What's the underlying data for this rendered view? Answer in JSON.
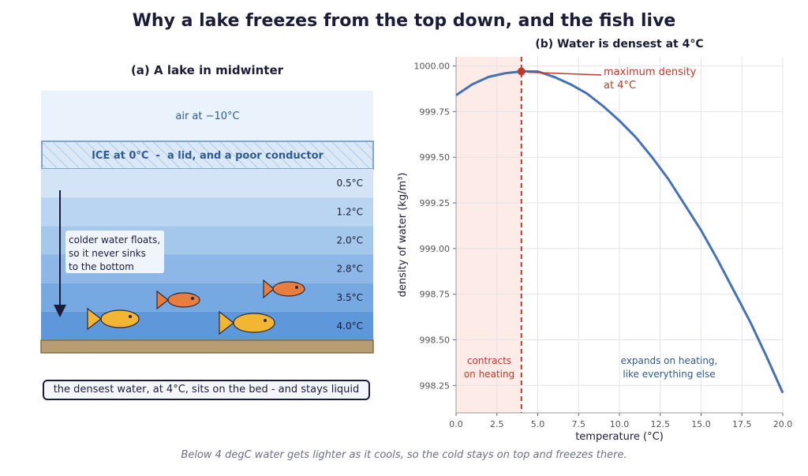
{
  "title": "Why a lake freezes from the top down, and the fish live",
  "lake_panel": {
    "title": "(a) A lake in midwinter",
    "air_label": "air at −10°C",
    "ice_label": "ICE at 0°C  -  a lid, and a poor conductor",
    "layers": [
      {
        "temp": "0.5°C",
        "color": "#d3e4f7"
      },
      {
        "temp": "1.2°C",
        "color": "#bad5f1"
      },
      {
        "temp": "2.0°C",
        "color": "#a4c7ec"
      },
      {
        "temp": "2.8°C",
        "color": "#8cb7e6"
      },
      {
        "temp": "3.5°C",
        "color": "#76a8e1"
      },
      {
        "temp": "4.0°C",
        "color": "#5f98da"
      }
    ],
    "note_lines": [
      "colder water floats,",
      "so it never sinks",
      "to the bottom"
    ],
    "bed_note": "the densest water, at 4°C, sits on the bed - and stays liquid",
    "colors": {
      "air": "#eaf2fb",
      "ice": "#dbe8f7",
      "ice_border": "#7fa6cc",
      "bed": "#b89c72",
      "fish_yellow": "#f2b632",
      "fish_orange": "#e77d3e"
    }
  },
  "chart_data": {
    "type": "line",
    "title": "(b) Water is densest at 4°C",
    "xlabel": "temperature (°C)",
    "ylabel": "density of water  (kg/m³)",
    "xlim": [
      0,
      20
    ],
    "ylim": [
      998.1,
      1000.05
    ],
    "xticks": [
      0,
      2.5,
      5,
      7.5,
      10,
      12.5,
      15,
      17.5,
      20
    ],
    "xtick_labels": [
      "0.0",
      "2.5",
      "5.0",
      "7.5",
      "10.0",
      "12.5",
      "15.0",
      "17.5",
      "20.0"
    ],
    "yticks": [
      998.25,
      998.5,
      998.75,
      999.0,
      999.25,
      999.5,
      999.75,
      1000.0
    ],
    "ytick_labels": [
      "998.25",
      "998.50",
      "998.75",
      "999.00",
      "999.25",
      "999.50",
      "999.75",
      "1000.00"
    ],
    "grid": true,
    "series": [
      {
        "color": "#4472b4",
        "x": [
          0,
          1,
          2,
          3,
          4,
          5,
          6,
          7,
          8,
          9,
          10,
          11,
          12,
          13,
          14,
          15,
          16,
          17,
          18,
          19,
          20
        ],
        "y": [
          999.84,
          999.9,
          999.94,
          999.96,
          999.97,
          999.97,
          999.94,
          999.9,
          999.85,
          999.78,
          999.7,
          999.61,
          999.5,
          999.38,
          999.24,
          999.1,
          998.94,
          998.77,
          998.6,
          998.41,
          998.21
        ]
      }
    ],
    "max_point": {
      "x": 4,
      "y": 999.97,
      "label_lines": [
        "maximum density",
        "at 4°C"
      ],
      "color": "#c0392b"
    },
    "shaded_region": {
      "x0": 0,
      "x1": 4,
      "color": "#fcebe7"
    },
    "vline": {
      "x": 4,
      "color": "#c0392b"
    },
    "annotations": {
      "contracts": {
        "lines": [
          "contracts",
          "on heating"
        ],
        "color": "#c0392b"
      },
      "expands": {
        "lines": [
          "expands on heating,",
          "like everything else"
        ],
        "color": "#2f5a94"
      }
    }
  },
  "caption": "Below 4 degC water gets lighter as it cools, so the cold stays on top and freezes there."
}
